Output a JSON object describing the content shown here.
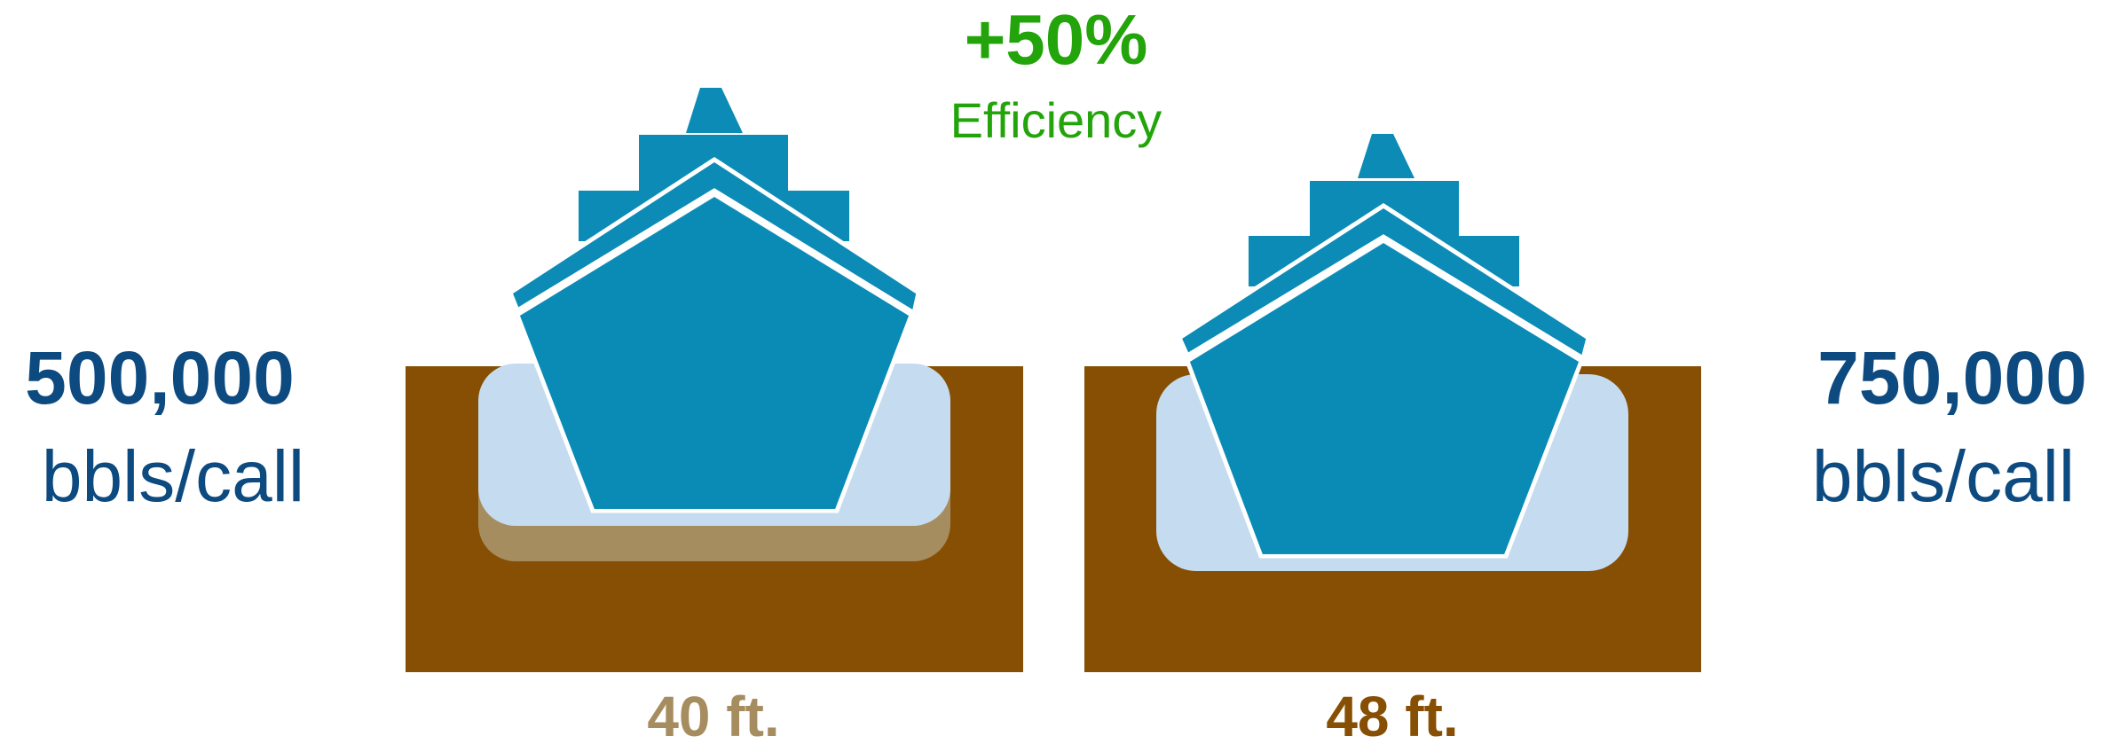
{
  "headline": {
    "value": "+50%",
    "label": "Efficiency"
  },
  "left_vessel": {
    "volume": "500,000",
    "unit": "bbls/call",
    "depth": "40 ft."
  },
  "right_vessel": {
    "volume": "750,000",
    "unit": "bbls/call",
    "depth": "48 ft."
  },
  "colors": {
    "accent_green": "#22a40a",
    "navy_text": "#0c4a80",
    "ship": "#0b8bb6",
    "water": "#c5dbef",
    "earth": "#864f03",
    "sediment": "#a68d5f",
    "left_depth_label": "#a68d5f",
    "right_depth_label": "#864f03"
  }
}
